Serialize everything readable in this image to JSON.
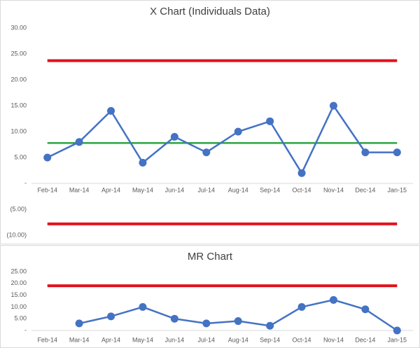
{
  "chart_data": [
    {
      "type": "line",
      "title": "X Chart (Individuals Data)",
      "categories": [
        "Feb-14",
        "Mar-14",
        "Apr-14",
        "May-14",
        "Jun-14",
        "Jul-14",
        "Aug-14",
        "Sep-14",
        "Oct-14",
        "Nov-14",
        "Dec-14",
        "Jan-15"
      ],
      "series": [
        {
          "color": "#4472c4",
          "values": [
            5,
            8,
            14,
            4,
            9,
            6,
            10,
            12,
            2,
            15,
            6,
            6
          ]
        }
      ],
      "reference_lines": [
        {
          "value": 23.7,
          "color": "#e3101a"
        },
        {
          "value": 7.8,
          "color": "#2ca444"
        },
        {
          "value": -7.8,
          "color": "#e3101a"
        }
      ],
      "ylim": [
        -10,
        30
      ],
      "yticks": [
        {
          "value": -10,
          "label": "(10.00)"
        },
        {
          "value": -5,
          "label": "(5.00)"
        },
        {
          "value": 0,
          "label": "-"
        },
        {
          "value": 5,
          "label": "5.00"
        },
        {
          "value": 10,
          "label": "10.00"
        },
        {
          "value": 15,
          "label": "15.00"
        },
        {
          "value": 20,
          "label": "20.00"
        },
        {
          "value": 25,
          "label": "25.00"
        },
        {
          "value": 30,
          "label": "30.00"
        }
      ]
    },
    {
      "type": "line",
      "title": "MR Chart",
      "categories": [
        "Feb-14",
        "Mar-14",
        "Apr-14",
        "May-14",
        "Jun-14",
        "Jul-14",
        "Aug-14",
        "Sep-14",
        "Oct-14",
        "Nov-14",
        "Dec-14",
        "Jan-15"
      ],
      "series": [
        {
          "color": "#4472c4",
          "values": [
            null,
            3,
            6,
            10,
            5,
            3,
            4,
            2,
            10,
            13,
            9,
            0
          ]
        }
      ],
      "reference_lines": [
        {
          "value": 19,
          "color": "#e3101a"
        }
      ],
      "ylim": [
        0,
        25
      ],
      "yticks": [
        {
          "value": 0,
          "label": "-"
        },
        {
          "value": 5,
          "label": "5.00"
        },
        {
          "value": 10,
          "label": "10.00"
        },
        {
          "value": 15,
          "label": "15.00"
        },
        {
          "value": 20,
          "label": "20.00"
        },
        {
          "value": 25,
          "label": "25.00"
        }
      ]
    }
  ]
}
